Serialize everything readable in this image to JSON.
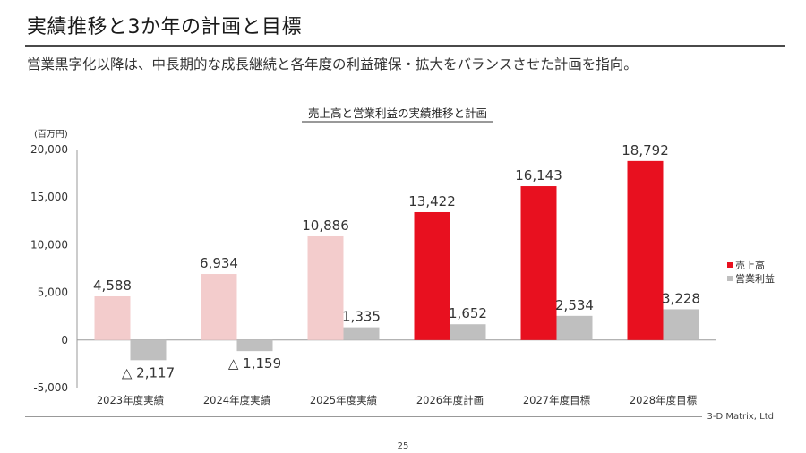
{
  "header": {
    "title": "実績推移と3か年の計画と目標",
    "subtitle": "営業黒字化以降は、中長期的な成長継続と各年度の利益確保・拡大をバランスさせた計画を指向。"
  },
  "chart_data": {
    "type": "bar",
    "title": "売上高と営業利益の実績推移と計画",
    "ylabel": "(百万円)",
    "ylim": [
      -5000,
      20000
    ],
    "yticks": [
      -5000,
      0,
      5000,
      10000,
      15000,
      20000
    ],
    "ytick_labels": [
      "-5,000",
      "0",
      "5,000",
      "10,000",
      "15,000",
      "20,000"
    ],
    "categories": [
      "2023年度実績",
      "2024年度実績",
      "2025年度実績",
      "2026年度計画",
      "2027年度目標",
      "2028年度目標"
    ],
    "legend_position": "right",
    "series": [
      {
        "name": "売上高",
        "values": [
          4588,
          6934,
          10886,
          13422,
          16143,
          18792
        ],
        "labels": [
          "4,588",
          "6,934",
          "10,886",
          "13,422",
          "16,143",
          "18,792"
        ],
        "colors": [
          "#f3cccc",
          "#f3cccc",
          "#f3cccc",
          "#e8101f",
          "#e8101f",
          "#e8101f"
        ],
        "legend_color": "#e8101f"
      },
      {
        "name": "営業利益",
        "values": [
          -2117,
          -1159,
          1335,
          1652,
          2534,
          3228
        ],
        "labels": [
          "△ 2,117",
          "△ 1,159",
          "1,335",
          "1,652",
          "2,534",
          "3,228"
        ],
        "colors": [
          "#bfbfbf",
          "#bfbfbf",
          "#bfbfbf",
          "#bfbfbf",
          "#bfbfbf",
          "#bfbfbf"
        ],
        "legend_color": "#bfbfbf"
      }
    ]
  },
  "footer": {
    "company": "3-D Matrix, Ltd",
    "page_number": "25"
  }
}
